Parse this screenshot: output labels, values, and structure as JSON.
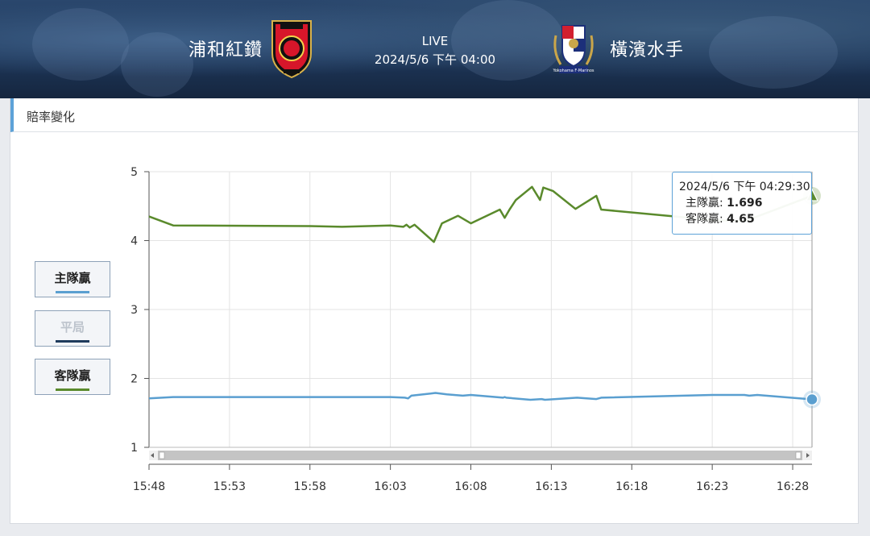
{
  "match": {
    "home_team": "浦和紅鑽",
    "away_team": "橫濱水手",
    "status": "LIVE",
    "datetime": "2024/5/6 下午 04:00",
    "home_logo_icon": "urawa-reds-crest-icon",
    "away_logo_icon": "yokohama-f-marinos-crest-icon",
    "away_logo_text": "Yokohama F·Marinos"
  },
  "panel": {
    "title": "賠率變化"
  },
  "legend": [
    {
      "label": "主隊贏",
      "color": "#5a9fd0",
      "active": true
    },
    {
      "label": "平局",
      "color": "#1f3b5c",
      "active": false
    },
    {
      "label": "客隊贏",
      "color": "#5a8a2c",
      "active": true
    }
  ],
  "tooltip": {
    "time": "2024/5/6 下午 04:29:30",
    "home_label": "主隊贏:",
    "home_value": "1.696",
    "away_label": "客隊贏:",
    "away_value": "4.65"
  },
  "chart_data": {
    "type": "line",
    "x_unit": "minutes after 15:48",
    "xlim": [
      0,
      41.2
    ],
    "ylim": [
      1,
      5
    ],
    "yticks": [
      1,
      2,
      3,
      4,
      5
    ],
    "xticks": [
      0,
      5,
      10,
      15,
      20,
      25,
      30,
      35,
      40
    ],
    "xtick_labels": [
      "15:48",
      "15:53",
      "15:58",
      "16:03",
      "16:08",
      "16:13",
      "16:18",
      "16:23",
      "16:28"
    ],
    "grid": true,
    "series": [
      {
        "name": "主隊贏",
        "color": "#5a9fd0",
        "points": [
          [
            0,
            1.71
          ],
          [
            1.5,
            1.73
          ],
          [
            10,
            1.73
          ],
          [
            15,
            1.73
          ],
          [
            15.9,
            1.72
          ],
          [
            16.1,
            1.71
          ],
          [
            16.3,
            1.75
          ],
          [
            17.5,
            1.78
          ],
          [
            17.8,
            1.79
          ],
          [
            18.5,
            1.77
          ],
          [
            19.5,
            1.75
          ],
          [
            20,
            1.76
          ],
          [
            22,
            1.72
          ],
          [
            22.1,
            1.73
          ],
          [
            22.2,
            1.72
          ],
          [
            23.7,
            1.69
          ],
          [
            24.4,
            1.7
          ],
          [
            24.6,
            1.69
          ],
          [
            26.6,
            1.72
          ],
          [
            27.8,
            1.7
          ],
          [
            28.1,
            1.72
          ],
          [
            35,
            1.76
          ],
          [
            37,
            1.76
          ],
          [
            37.3,
            1.75
          ],
          [
            37.8,
            1.76
          ],
          [
            41.2,
            1.696
          ]
        ]
      },
      {
        "name": "客隊贏",
        "color": "#5a8a2c",
        "points": [
          [
            0,
            4.35
          ],
          [
            1.5,
            4.22
          ],
          [
            10,
            4.21
          ],
          [
            12,
            4.2
          ],
          [
            15,
            4.22
          ],
          [
            15.8,
            4.2
          ],
          [
            16,
            4.23
          ],
          [
            16.2,
            4.19
          ],
          [
            16.5,
            4.23
          ],
          [
            17.7,
            3.98
          ],
          [
            18.2,
            4.25
          ],
          [
            19.2,
            4.36
          ],
          [
            20,
            4.25
          ],
          [
            21.8,
            4.45
          ],
          [
            22.1,
            4.33
          ],
          [
            22.4,
            4.45
          ],
          [
            22.8,
            4.59
          ],
          [
            23.8,
            4.78
          ],
          [
            24.3,
            4.59
          ],
          [
            24.5,
            4.77
          ],
          [
            25.1,
            4.72
          ],
          [
            26.5,
            4.46
          ],
          [
            27.8,
            4.65
          ],
          [
            28.1,
            4.45
          ],
          [
            35,
            4.3
          ],
          [
            37,
            4.28
          ],
          [
            41.2,
            4.65
          ]
        ]
      }
    ]
  }
}
